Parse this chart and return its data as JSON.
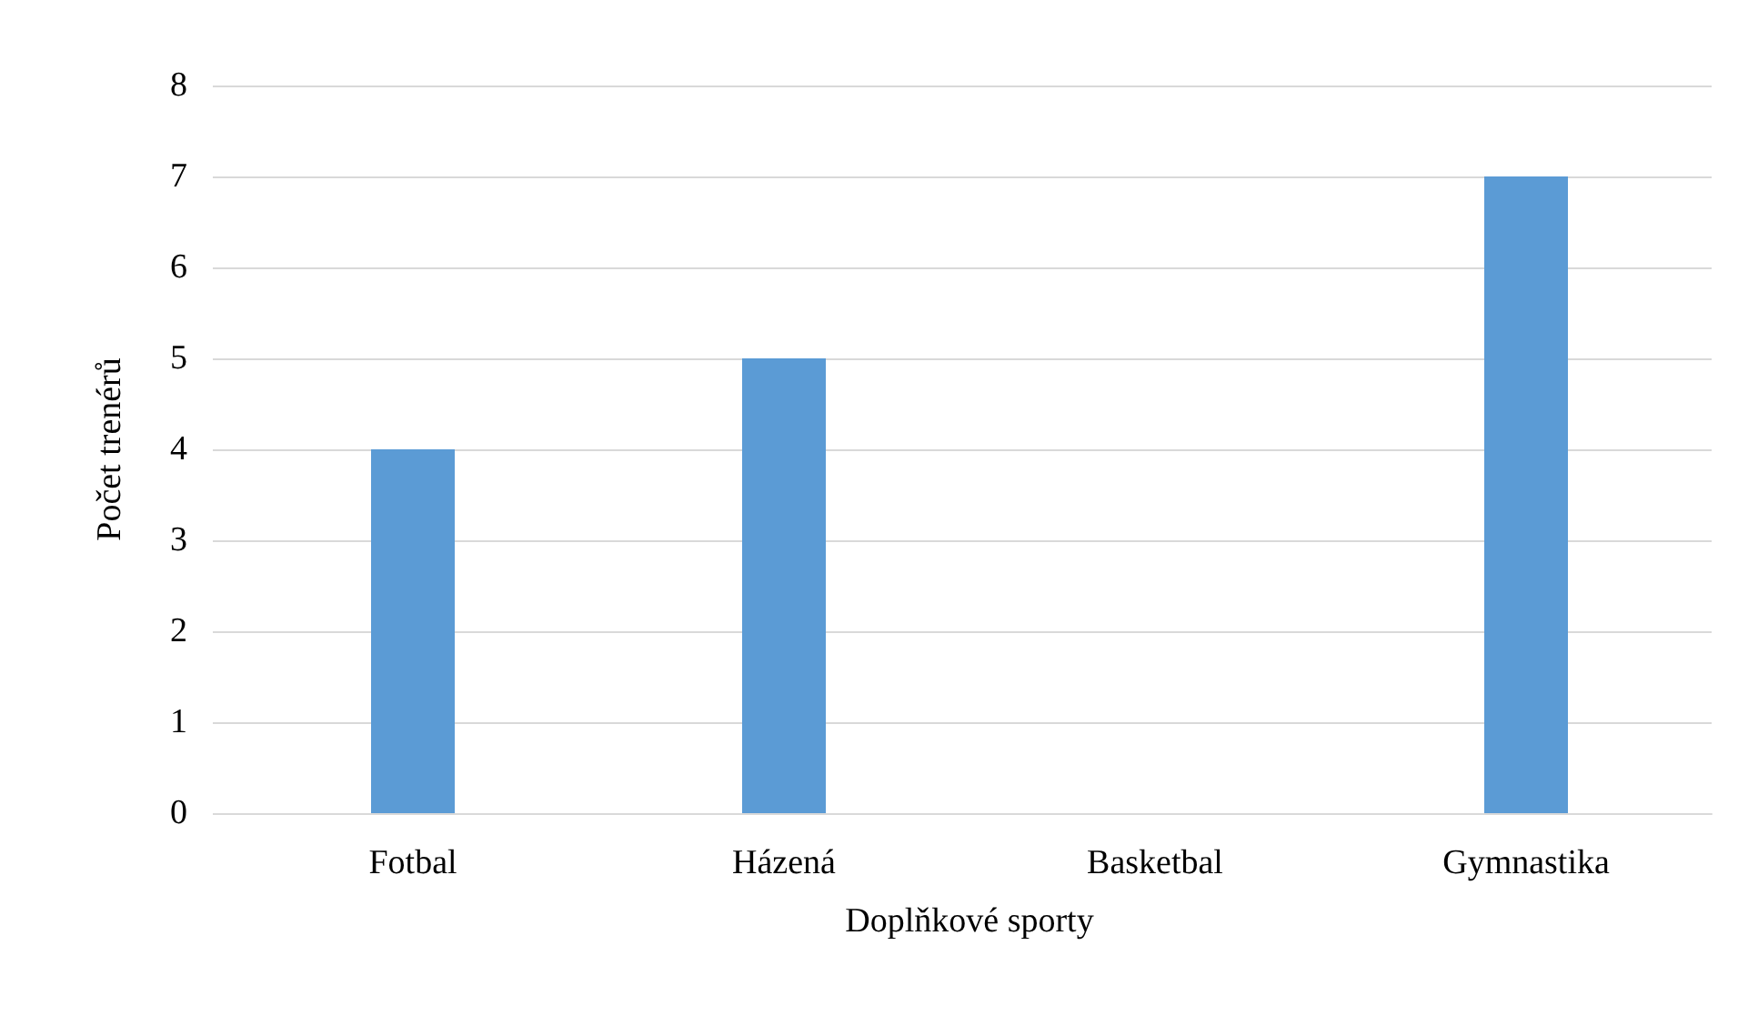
{
  "chart_data": {
    "type": "bar",
    "xlabel": "Doplňkové sporty",
    "ylabel": "Počet trenérů",
    "categories": [
      "Fotbal",
      "Házená",
      "Basketbal",
      "Gymnastika"
    ],
    "values": [
      4,
      5,
      0,
      7
    ],
    "color": "#5b9bd5",
    "ylim": [
      0,
      8
    ],
    "yticks": [
      0,
      1,
      2,
      3,
      4,
      5,
      6,
      7,
      8
    ],
    "grid": "y"
  }
}
